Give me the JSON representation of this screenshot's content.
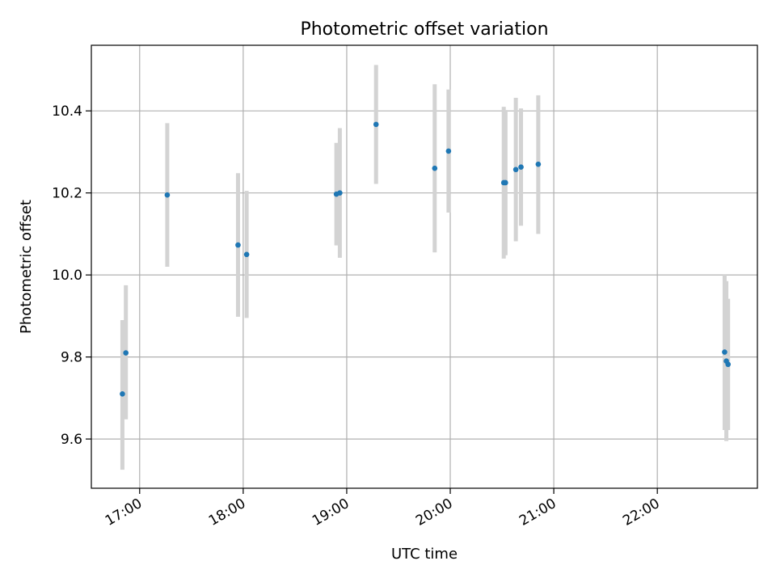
{
  "chart_data": {
    "type": "scatter",
    "title": "Photometric offset variation",
    "xlabel": "UTC time",
    "ylabel": "Photometric offset",
    "xlim": [
      "16:32",
      "22:58"
    ],
    "ylim": [
      9.48,
      10.56
    ],
    "x_ticks": [
      "17:00",
      "18:00",
      "19:00",
      "20:00",
      "21:00",
      "22:00"
    ],
    "y_ticks": [
      9.6,
      9.8,
      10.0,
      10.2,
      10.4
    ],
    "y_tick_labels": [
      "9.6",
      "9.8",
      "10.0",
      "10.2",
      "10.4"
    ],
    "grid": true,
    "colors": {
      "point": "#1f77b4",
      "errorbar": "#d3d3d3",
      "grid": "#b0b0b0"
    },
    "points": [
      {
        "time": "16:50",
        "y": 9.71,
        "ylo": 9.525,
        "yhi": 9.89
      },
      {
        "time": "16:52",
        "y": 9.81,
        "ylo": 9.648,
        "yhi": 9.975
      },
      {
        "time": "17:16",
        "y": 10.195,
        "ylo": 10.02,
        "yhi": 10.37
      },
      {
        "time": "17:57",
        "y": 10.073,
        "ylo": 9.898,
        "yhi": 10.248
      },
      {
        "time": "18:02",
        "y": 10.05,
        "ylo": 9.895,
        "yhi": 10.205
      },
      {
        "time": "18:54",
        "y": 10.197,
        "ylo": 10.072,
        "yhi": 10.322
      },
      {
        "time": "18:56",
        "y": 10.2,
        "ylo": 10.042,
        "yhi": 10.358
      },
      {
        "time": "19:17",
        "y": 10.367,
        "ylo": 10.222,
        "yhi": 10.512
      },
      {
        "time": "19:51",
        "y": 10.26,
        "ylo": 10.055,
        "yhi": 10.465
      },
      {
        "time": "19:59",
        "y": 10.302,
        "ylo": 10.152,
        "yhi": 10.452
      },
      {
        "time": "20:31",
        "y": 10.225,
        "ylo": 10.04,
        "yhi": 10.41
      },
      {
        "time": "20:32",
        "y": 10.225,
        "ylo": 10.048,
        "yhi": 10.402
      },
      {
        "time": "20:38",
        "y": 10.257,
        "ylo": 10.082,
        "yhi": 10.432
      },
      {
        "time": "20:41",
        "y": 10.263,
        "ylo": 10.12,
        "yhi": 10.406
      },
      {
        "time": "20:51",
        "y": 10.27,
        "ylo": 10.1,
        "yhi": 10.438
      },
      {
        "time": "22:39",
        "y": 9.812,
        "ylo": 9.622,
        "yhi": 10.002
      },
      {
        "time": "22:40",
        "y": 9.79,
        "ylo": 9.595,
        "yhi": 9.985
      },
      {
        "time": "22:41",
        "y": 9.782,
        "ylo": 9.622,
        "yhi": 9.942
      }
    ]
  }
}
